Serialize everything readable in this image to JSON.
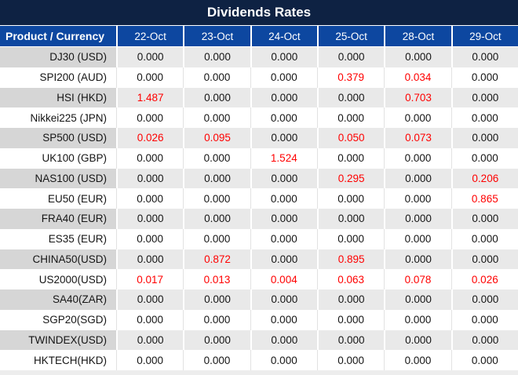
{
  "title": "Dividends Rates",
  "table": {
    "product_header": "Product / Currency",
    "date_columns": [
      "22-Oct",
      "23-Oct",
      "24-Oct",
      "25-Oct",
      "28-Oct",
      "29-Oct"
    ],
    "rows": [
      {
        "product": "DJ30 (USD)",
        "values": [
          "0.000",
          "0.000",
          "0.000",
          "0.000",
          "0.000",
          "0.000"
        ],
        "red_indices": []
      },
      {
        "product": "SPI200 (AUD)",
        "values": [
          "0.000",
          "0.000",
          "0.000",
          "0.379",
          "0.034",
          "0.000"
        ],
        "red_indices": [
          3,
          4
        ]
      },
      {
        "product": "HSI (HKD)",
        "values": [
          "1.487",
          "0.000",
          "0.000",
          "0.000",
          "0.703",
          "0.000"
        ],
        "red_indices": [
          0,
          4
        ]
      },
      {
        "product": "Nikkei225 (JPN)",
        "values": [
          "0.000",
          "0.000",
          "0.000",
          "0.000",
          "0.000",
          "0.000"
        ],
        "red_indices": []
      },
      {
        "product": "SP500 (USD)",
        "values": [
          "0.026",
          "0.095",
          "0.000",
          "0.050",
          "0.073",
          "0.000"
        ],
        "red_indices": [
          0,
          1,
          3,
          4
        ]
      },
      {
        "product": "UK100 (GBP)",
        "values": [
          "0.000",
          "0.000",
          "1.524",
          "0.000",
          "0.000",
          "0.000"
        ],
        "red_indices": [
          2
        ]
      },
      {
        "product": "NAS100 (USD)",
        "values": [
          "0.000",
          "0.000",
          "0.000",
          "0.295",
          "0.000",
          "0.206"
        ],
        "red_indices": [
          3,
          5
        ]
      },
      {
        "product": "EU50 (EUR)",
        "values": [
          "0.000",
          "0.000",
          "0.000",
          "0.000",
          "0.000",
          "0.865"
        ],
        "red_indices": [
          5
        ]
      },
      {
        "product": "FRA40 (EUR)",
        "values": [
          "0.000",
          "0.000",
          "0.000",
          "0.000",
          "0.000",
          "0.000"
        ],
        "red_indices": []
      },
      {
        "product": "ES35 (EUR)",
        "values": [
          "0.000",
          "0.000",
          "0.000",
          "0.000",
          "0.000",
          "0.000"
        ],
        "red_indices": []
      },
      {
        "product": "CHINA50(USD)",
        "values": [
          "0.000",
          "0.872",
          "0.000",
          "0.895",
          "0.000",
          "0.000"
        ],
        "red_indices": [
          1,
          3
        ]
      },
      {
        "product": "US2000(USD)",
        "values": [
          "0.017",
          "0.013",
          "0.004",
          "0.063",
          "0.078",
          "0.026"
        ],
        "red_indices": [
          0,
          1,
          2,
          3,
          4,
          5
        ]
      },
      {
        "product": "SA40(ZAR)",
        "values": [
          "0.000",
          "0.000",
          "0.000",
          "0.000",
          "0.000",
          "0.000"
        ],
        "red_indices": []
      },
      {
        "product": "SGP20(SGD)",
        "values": [
          "0.000",
          "0.000",
          "0.000",
          "0.000",
          "0.000",
          "0.000"
        ],
        "red_indices": []
      },
      {
        "product": "TWINDEX(USD)",
        "values": [
          "0.000",
          "0.000",
          "0.000",
          "0.000",
          "0.000",
          "0.000"
        ],
        "red_indices": []
      },
      {
        "product": "HKTECH(HKD)",
        "values": [
          "0.000",
          "0.000",
          "0.000",
          "0.000",
          "0.000",
          "0.000"
        ],
        "red_indices": []
      }
    ]
  },
  "colors": {
    "title_background": "#0e2243",
    "header_background": "#0d47a0",
    "stripe_product_cell": "#d6d6d6",
    "stripe_value_cell": "#e9e9e9",
    "highlight_red": "#ff0000",
    "text_black": "#151515",
    "header_text": "#ffffff"
  },
  "chart_data": {
    "type": "table",
    "title": "Dividends Rates",
    "row_header": "Product / Currency",
    "columns": [
      "22-Oct",
      "23-Oct",
      "24-Oct",
      "25-Oct",
      "28-Oct",
      "29-Oct"
    ],
    "rows": [
      {
        "product": "DJ30 (USD)",
        "values": [
          0.0,
          0.0,
          0.0,
          0.0,
          0.0,
          0.0
        ]
      },
      {
        "product": "SPI200 (AUD)",
        "values": [
          0.0,
          0.0,
          0.0,
          0.379,
          0.034,
          0.0
        ]
      },
      {
        "product": "HSI (HKD)",
        "values": [
          1.487,
          0.0,
          0.0,
          0.0,
          0.703,
          0.0
        ]
      },
      {
        "product": "Nikkei225 (JPN)",
        "values": [
          0.0,
          0.0,
          0.0,
          0.0,
          0.0,
          0.0
        ]
      },
      {
        "product": "SP500 (USD)",
        "values": [
          0.026,
          0.095,
          0.0,
          0.05,
          0.073,
          0.0
        ]
      },
      {
        "product": "UK100 (GBP)",
        "values": [
          0.0,
          0.0,
          1.524,
          0.0,
          0.0,
          0.0
        ]
      },
      {
        "product": "NAS100 (USD)",
        "values": [
          0.0,
          0.0,
          0.0,
          0.295,
          0.0,
          0.206
        ]
      },
      {
        "product": "EU50 (EUR)",
        "values": [
          0.0,
          0.0,
          0.0,
          0.0,
          0.0,
          0.865
        ]
      },
      {
        "product": "FRA40 (EUR)",
        "values": [
          0.0,
          0.0,
          0.0,
          0.0,
          0.0,
          0.0
        ]
      },
      {
        "product": "ES35 (EUR)",
        "values": [
          0.0,
          0.0,
          0.0,
          0.0,
          0.0,
          0.0
        ]
      },
      {
        "product": "CHINA50(USD)",
        "values": [
          0.0,
          0.872,
          0.0,
          0.895,
          0.0,
          0.0
        ]
      },
      {
        "product": "US2000(USD)",
        "values": [
          0.017,
          0.013,
          0.004,
          0.063,
          0.078,
          0.026
        ]
      },
      {
        "product": "SA40(ZAR)",
        "values": [
          0.0,
          0.0,
          0.0,
          0.0,
          0.0,
          0.0
        ]
      },
      {
        "product": "SGP20(SGD)",
        "values": [
          0.0,
          0.0,
          0.0,
          0.0,
          0.0,
          0.0
        ]
      },
      {
        "product": "TWINDEX(USD)",
        "values": [
          0.0,
          0.0,
          0.0,
          0.0,
          0.0,
          0.0
        ]
      },
      {
        "product": "HKTECH(HKD)",
        "values": [
          0.0,
          0.0,
          0.0,
          0.0,
          0.0,
          0.0
        ]
      }
    ],
    "notes": "Non-zero values are shown highlighted in red; zeros in black. Alternating gray/white row striping."
  }
}
